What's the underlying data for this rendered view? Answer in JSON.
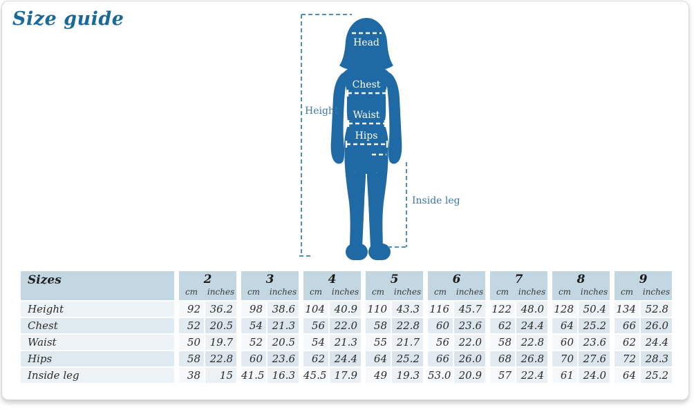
{
  "page": {
    "title": "Size guide"
  },
  "figure": {
    "body_labels": {
      "head": "Head",
      "chest": "Chest",
      "waist": "Waist",
      "hips": "Hips"
    },
    "height_label": "Height",
    "inside_leg_label": "Inside leg"
  },
  "colors": {
    "title_blue": "#19699b",
    "silhouette_blue": "#1f6aa5",
    "dash_blue": "#4e8cba",
    "figure_label_blue": "#3a77ad",
    "header_bg": "#c3d7e2"
  },
  "table": {
    "corner_label": "Sizes",
    "unit_labels": {
      "cm": "cm",
      "inches": "inches"
    },
    "sizes": [
      "2",
      "3",
      "4",
      "5",
      "6",
      "7",
      "8",
      "9"
    ],
    "rows": [
      {
        "label": "Height",
        "values": [
          [
            "92",
            "36.2"
          ],
          [
            "98",
            "38.6"
          ],
          [
            "104",
            "40.9"
          ],
          [
            "110",
            "43.3"
          ],
          [
            "116",
            "45.7"
          ],
          [
            "122",
            "48.0"
          ],
          [
            "128",
            "50.4"
          ],
          [
            "134",
            "52.8"
          ]
        ]
      },
      {
        "label": "Chest",
        "values": [
          [
            "52",
            "20.5"
          ],
          [
            "54",
            "21.3"
          ],
          [
            "56",
            "22.0"
          ],
          [
            "58",
            "22.8"
          ],
          [
            "60",
            "23.6"
          ],
          [
            "62",
            "24.4"
          ],
          [
            "64",
            "25.2"
          ],
          [
            "66",
            "26.0"
          ]
        ]
      },
      {
        "label": "Waist",
        "values": [
          [
            "50",
            "19.7"
          ],
          [
            "52",
            "20.5"
          ],
          [
            "54",
            "21.3"
          ],
          [
            "55",
            "21.7"
          ],
          [
            "56",
            "22.0"
          ],
          [
            "58",
            "22.8"
          ],
          [
            "60",
            "23.6"
          ],
          [
            "62",
            "24.4"
          ]
        ]
      },
      {
        "label": "Hips",
        "values": [
          [
            "58",
            "22.8"
          ],
          [
            "60",
            "23.6"
          ],
          [
            "62",
            "24.4"
          ],
          [
            "64",
            "25.2"
          ],
          [
            "66",
            "26.0"
          ],
          [
            "68",
            "26.8"
          ],
          [
            "70",
            "27.6"
          ],
          [
            "72",
            "28.3"
          ]
        ]
      },
      {
        "label": "Inside leg",
        "values": [
          [
            "38",
            "15"
          ],
          [
            "41.5",
            "16.3"
          ],
          [
            "45.5",
            "17.9"
          ],
          [
            "49",
            "19.3"
          ],
          [
            "53.0",
            "20.9"
          ],
          [
            "57",
            "22.4"
          ],
          [
            "61",
            "24.0"
          ],
          [
            "64",
            "25.2"
          ]
        ]
      }
    ]
  }
}
